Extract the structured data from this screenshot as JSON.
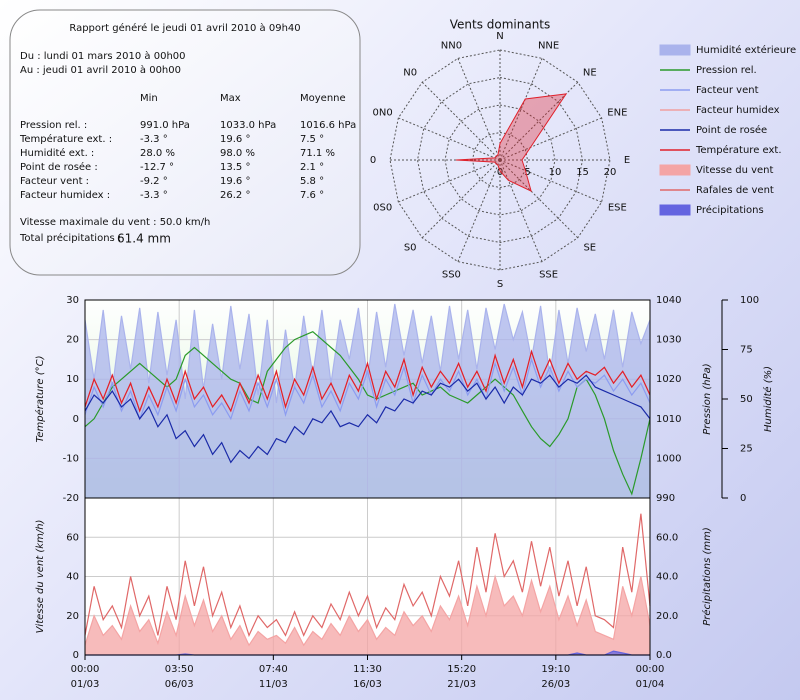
{
  "report": {
    "title": "Rapport généré le jeudi 01 avril 2010 à 09h40",
    "from": "Du : lundi 01 mars 2010 à 00h00",
    "to": "Au : jeudi 01 avril 2010 à 00h00",
    "columns": [
      "Min",
      "Max",
      "Moyenne"
    ],
    "rows": [
      [
        "Pression rel. :",
        "991.0 hPa",
        "1033.0 hPa",
        "1016.6 hPa"
      ],
      [
        "Température ext. :",
        "-3.3 °",
        "19.6 °",
        "7.5 °"
      ],
      [
        "Humidité ext. :",
        "28.0 %",
        "98.0 %",
        "71.1 %"
      ],
      [
        "Point de rosée :",
        "-12.7 °",
        "13.5 °",
        "2.1 °"
      ],
      [
        "Facteur vent :",
        "-9.2 °",
        "19.6 °",
        "5.8 °"
      ],
      [
        "Facteur humidex :",
        "-3.3 °",
        "26.2 °",
        "7.6 °"
      ]
    ],
    "max_wind": "Vitesse maximale du vent : 50.0 km/h",
    "precip_label": "Total précipitations :",
    "precip_value": "61.4 mm"
  },
  "chart_data": [
    {
      "type": "radar",
      "title": "Vents dominants",
      "directions": [
        "N",
        "NNE",
        "NE",
        "ENE",
        "E",
        "ESE",
        "SE",
        "SSE",
        "S",
        "SS0",
        "S0",
        "0S0",
        "0",
        "0N0",
        "N0",
        "NN0"
      ],
      "values": [
        3,
        12,
        17,
        6,
        4,
        5,
        8,
        4,
        2,
        1,
        1,
        1,
        8,
        1,
        1,
        1
      ],
      "color": "#e0202a",
      "rlim": [
        0,
        20
      ],
      "rticks": [
        0,
        5,
        10,
        15,
        20
      ]
    },
    {
      "type": "line",
      "x": [
        0,
        12,
        24,
        36,
        48,
        60,
        72,
        84,
        96,
        108,
        120,
        132,
        144,
        156,
        168,
        180,
        192,
        204,
        216,
        228,
        240,
        252,
        264,
        276,
        288,
        300,
        312,
        324,
        336,
        348,
        360,
        372,
        384,
        396,
        408,
        420,
        432,
        444,
        456,
        468,
        480,
        492,
        504,
        516,
        528,
        540,
        552,
        564,
        576,
        588,
        600,
        612,
        624,
        636,
        648,
        660,
        672,
        684,
        696,
        708,
        720,
        732,
        744
      ],
      "xlim": [
        0,
        744
      ],
      "xticks": [
        {
          "value": 0,
          "label": "00:00",
          "date": "01/03"
        },
        {
          "value": 124,
          "label": "03:50",
          "date": "06/03"
        },
        {
          "value": 248,
          "label": "07:40",
          "date": "11/03"
        },
        {
          "value": 372,
          "label": "11:30",
          "date": "16/03"
        },
        {
          "value": 496,
          "label": "15:20",
          "date": "21/03"
        },
        {
          "value": 620,
          "label": "19:10",
          "date": "26/03"
        },
        {
          "value": 744,
          "label": "00:00",
          "date": "01/04"
        }
      ],
      "grid": true,
      "panels": [
        {
          "ylabel": "Température (°C)",
          "ylim": [
            -20,
            30
          ],
          "yticks": [
            -20,
            -10,
            0,
            10,
            20,
            30
          ],
          "y2label": "Pression (hPa)",
          "y2lim": [
            990,
            1040
          ],
          "y2ticks": [
            990,
            1000,
            1010,
            1020,
            1030,
            1040
          ],
          "y3label": "Humidité (%)",
          "y3lim": [
            0,
            100
          ],
          "y3ticks": [
            0,
            25,
            50,
            75,
            100
          ],
          "series": [
            {
              "name": "Humidité extérieure",
              "kind": "area",
              "axis": "y3",
              "color": "#aab3ec",
              "values": [
                90,
                60,
                95,
                55,
                92,
                65,
                96,
                58,
                94,
                62,
                90,
                50,
                95,
                55,
                88,
                60,
                97,
                65,
                93,
                52,
                90,
                48,
                85,
                55,
                92,
                62,
                95,
                58,
                90,
                70,
                96,
                60,
                94,
                66,
                98,
                72,
                95,
                68,
                92,
                64,
                97,
                70,
                95,
                65,
                96,
                75,
                98,
                80,
                94,
                70,
                97,
                62,
                95,
                68,
                96,
                74,
                93,
                70,
                95,
                66,
                94,
                78,
                90
              ]
            },
            {
              "name": "Pression rel.",
              "kind": "line",
              "axis": "y2",
              "color": "#2a9a2a",
              "values": [
                1008,
                1010,
                1014,
                1018,
                1020,
                1022,
                1024,
                1022,
                1020,
                1018,
                1020,
                1026,
                1028,
                1026,
                1024,
                1022,
                1020,
                1019,
                1015,
                1014,
                1022,
                1025,
                1028,
                1030,
                1031,
                1032,
                1030,
                1028,
                1026,
                1023,
                1020,
                1016,
                1015,
                1016,
                1017,
                1018,
                1019,
                1016,
                1017,
                1018,
                1016,
                1015,
                1014,
                1016,
                1018,
                1020,
                1018,
                1016,
                1012,
                1008,
                1005,
                1003,
                1006,
                1010,
                1018,
                1020,
                1016,
                1010,
                1002,
                996,
                991,
                1000,
                1010
              ]
            },
            {
              "name": "Facteur vent",
              "kind": "line",
              "axis": "y",
              "color": "#8c9cf0",
              "values": [
                1,
                8,
                3,
                9,
                2,
                7,
                0,
                6,
                1,
                8,
                2,
                10,
                3,
                6,
                1,
                4,
                0,
                7,
                2,
                9,
                3,
                10,
                1,
                8,
                4,
                11,
                3,
                7,
                2,
                9,
                5,
                12,
                3,
                10,
                6,
                13,
                4,
                11,
                6,
                10,
                7,
                12,
                6,
                10,
                5,
                14,
                7,
                13,
                6,
                15,
                8,
                13,
                7,
                12,
                8,
                10,
                9,
                11,
                7,
                10,
                6,
                9,
                4
              ]
            },
            {
              "name": "Facteur humidex",
              "kind": "line",
              "axis": "y",
              "color": "#f0a0a0",
              "values": [
                3,
                10,
                5,
                11,
                4,
                9,
                2,
                8,
                3,
                10,
                4,
                12,
                5,
                8,
                3,
                6,
                2,
                9,
                4,
                11,
                5,
                12,
                3,
                10,
                6,
                13,
                5,
                9,
                4,
                11,
                7,
                14,
                5,
                12,
                8,
                15,
                6,
                13,
                8,
                12,
                9,
                14,
                8,
                12,
                7,
                16,
                9,
                15,
                8,
                17,
                10,
                15,
                9,
                14,
                10,
                12,
                11,
                13,
                9,
                12,
                8,
                11,
                6
              ]
            },
            {
              "name": "Point de rosée",
              "kind": "line",
              "axis": "y",
              "color": "#1a2aa8",
              "values": [
                2,
                6,
                4,
                7,
                3,
                5,
                0,
                3,
                -2,
                1,
                -5,
                -3,
                -7,
                -4,
                -9,
                -6,
                -11,
                -8,
                -10,
                -7,
                -9,
                -5,
                -6,
                -2,
                -4,
                0,
                -1,
                2,
                -2,
                -1,
                -2,
                1,
                -1,
                3,
                2,
                5,
                4,
                7,
                6,
                9,
                8,
                10,
                7,
                9,
                5,
                8,
                4,
                8,
                6,
                10,
                9,
                11,
                8,
                10,
                9,
                11,
                8,
                7,
                6,
                5,
                4,
                3,
                0
              ]
            },
            {
              "name": "Température ext.",
              "kind": "line",
              "axis": "y",
              "color": "#e0202a",
              "values": [
                3,
                10,
                5,
                11,
                4,
                9,
                2,
                8,
                3,
                10,
                4,
                12,
                5,
                8,
                3,
                6,
                2,
                9,
                4,
                11,
                5,
                12,
                3,
                10,
                6,
                13,
                5,
                9,
                4,
                11,
                7,
                14,
                5,
                12,
                8,
                15,
                6,
                13,
                8,
                12,
                9,
                14,
                8,
                12,
                7,
                16,
                9,
                15,
                8,
                17,
                10,
                15,
                9,
                14,
                10,
                12,
                11,
                13,
                9,
                12,
                8,
                11,
                6
              ]
            }
          ]
        },
        {
          "ylabel": "Vitesse du vent (km/h)",
          "ylim": [
            0,
            80
          ],
          "yticks": [
            0,
            20,
            40,
            60
          ],
          "y2label": "Précipitations (mm)",
          "y2lim": [
            0,
            80
          ],
          "y2ticks": [
            {
              "value": 0,
              "label": "0.0"
            },
            {
              "value": 20,
              "label": "20.0"
            },
            {
              "value": 40,
              "label": "40.0"
            },
            {
              "value": 60,
              "label": "60.0"
            }
          ],
          "series": [
            {
              "name": "Vitesse du vent",
              "kind": "area",
              "axis": "y",
              "color": "#f4a4a4",
              "values": [
                5,
                20,
                10,
                15,
                8,
                25,
                12,
                18,
                6,
                22,
                10,
                30,
                15,
                28,
                12,
                20,
                8,
                15,
                5,
                12,
                8,
                10,
                6,
                14,
                5,
                12,
                8,
                16,
                10,
                20,
                12,
                18,
                8,
                14,
                10,
                22,
                15,
                20,
                12,
                25,
                18,
                30,
                15,
                35,
                20,
                40,
                25,
                30,
                20,
                38,
                22,
                35,
                18,
                30,
                15,
                28,
                12,
                10,
                8,
                35,
                20,
                40,
                15
              ]
            },
            {
              "name": "Rafales de vent",
              "kind": "line",
              "axis": "y",
              "color": "#e06868",
              "values": [
                10,
                35,
                18,
                25,
                14,
                40,
                20,
                30,
                10,
                35,
                18,
                48,
                25,
                45,
                20,
                32,
                14,
                25,
                10,
                20,
                14,
                18,
                10,
                22,
                10,
                20,
                14,
                26,
                18,
                32,
                20,
                30,
                14,
                24,
                18,
                36,
                25,
                32,
                20,
                40,
                30,
                48,
                25,
                55,
                32,
                62,
                40,
                48,
                32,
                58,
                35,
                55,
                30,
                48,
                25,
                45,
                20,
                18,
                14,
                55,
                32,
                72,
                25
              ]
            },
            {
              "name": "Précipitations",
              "kind": "area",
              "axis": "y2",
              "color": "#6464e0",
              "values": [
                0,
                0,
                0,
                0,
                0,
                0,
                0,
                0,
                0,
                0,
                0,
                0.5,
                0,
                0,
                0,
                0,
                0,
                0,
                0,
                0,
                0,
                0,
                0,
                0,
                0,
                0,
                0,
                0,
                0,
                0,
                0,
                0,
                0,
                0,
                0,
                0,
                0,
                0,
                0,
                0,
                0,
                0,
                0,
                0,
                0,
                0,
                0,
                0,
                0,
                0,
                0,
                0,
                0,
                0,
                1,
                0,
                0,
                0,
                2,
                1,
                0,
                0,
                0
              ]
            }
          ]
        }
      ]
    }
  ]
}
